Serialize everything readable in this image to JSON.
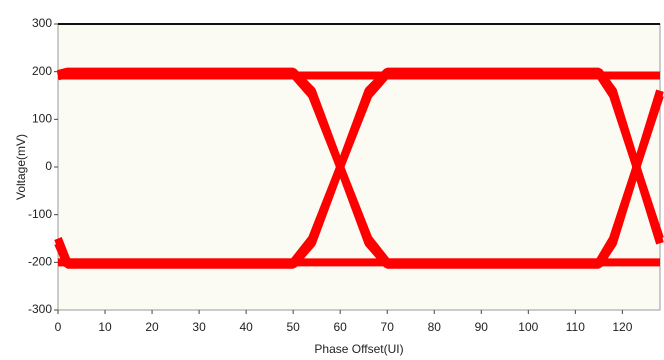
{
  "chart_data": {
    "type": "line",
    "ylabel": "Voltage(mV)",
    "xlabel": "Phase Offset(UI)",
    "x": [
      0,
      2,
      50,
      54,
      60,
      66,
      70,
      115,
      118,
      123,
      128
    ],
    "series": [
      {
        "color": "#ff0000",
        "values": [
          190,
          195,
          195,
          150,
          0,
          -150,
          -200,
          -200,
          -150,
          0,
          150
        ]
      },
      {
        "color": "#ff0000",
        "values": [
          -150,
          -200,
          -200,
          -150,
          0,
          150,
          195,
          195,
          150,
          0,
          -150
        ]
      },
      {
        "color": "#ff0000",
        "values": [
          195,
          200,
          200,
          160,
          0,
          -160,
          -205,
          -205,
          -160,
          0,
          160
        ]
      },
      {
        "color": "#ff0000",
        "values": [
          -160,
          -205,
          -205,
          -160,
          0,
          160,
          200,
          200,
          160,
          0,
          -160
        ]
      },
      {
        "color": "#ff0000",
        "values": [
          192,
          192,
          192,
          192,
          192,
          192,
          192,
          192,
          192,
          192,
          192
        ]
      },
      {
        "color": "#ff0000",
        "values": [
          -200,
          -200,
          -200,
          -200,
          -200,
          -200,
          -200,
          -200,
          -200,
          -200,
          -200
        ]
      }
    ],
    "xlim": [
      0,
      128
    ],
    "ylim": [
      -300,
      300
    ],
    "xticks": [
      0,
      10,
      20,
      30,
      40,
      50,
      60,
      70,
      80,
      90,
      100,
      110,
      120
    ],
    "yticks": [
      -300,
      -200,
      -100,
      0,
      100,
      200,
      300
    ],
    "grid": false
  }
}
